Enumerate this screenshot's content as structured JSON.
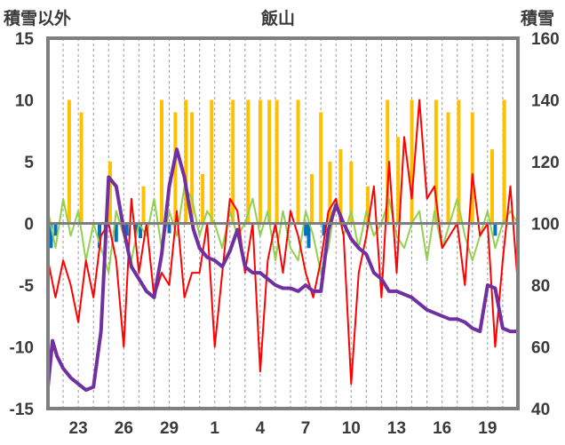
{
  "chart_data": {
    "type": "line",
    "title": "飯山",
    "ylabel_left": "積雪以外",
    "ylabel_right": "積雪",
    "ylim_left": [
      -15,
      15
    ],
    "ylim_right": [
      40,
      160
    ],
    "left_ticks": [
      15,
      10,
      5,
      0,
      -5,
      -10,
      -15
    ],
    "right_ticks": [
      160,
      140,
      120,
      100,
      80,
      60,
      40
    ],
    "x_range_days": [
      0,
      31
    ],
    "x_ticks": [
      {
        "day": 2,
        "label": "23"
      },
      {
        "day": 5,
        "label": "26"
      },
      {
        "day": 8,
        "label": "29"
      },
      {
        "day": 11,
        "label": "1"
      },
      {
        "day": 14,
        "label": "4"
      },
      {
        "day": 17,
        "label": "7"
      },
      {
        "day": 20,
        "label": "10"
      },
      {
        "day": 23,
        "label": "13"
      },
      {
        "day": 26,
        "label": "16"
      },
      {
        "day": 29,
        "label": "19"
      }
    ],
    "colors": {
      "snow_depth": "#7030a0",
      "temperature": "#ff0000",
      "other": "#92d050",
      "snowfall": "#ffc000",
      "negative_bars": "#0070c0",
      "frame": "#7f7f7f",
      "zero_line": "#7f7f7f",
      "gridline": "#9a9a9a"
    },
    "series": [
      {
        "axis": "right",
        "style": "line",
        "x": [
          0,
          0.3,
          0.6,
          1,
          1.5,
          2,
          2.5,
          3,
          3.5,
          4,
          4.5,
          5,
          5.5,
          6,
          6.5,
          7,
          7.5,
          8,
          8.5,
          9,
          9.3,
          9.6,
          10,
          10.5,
          11,
          11.5,
          12,
          12.5,
          13,
          13.5,
          14,
          14.5,
          15,
          15.5,
          16,
          16.5,
          17,
          17.5,
          18,
          18.5,
          19,
          19.5,
          20,
          20.5,
          21,
          21.5,
          22,
          22.5,
          23,
          23.5,
          24,
          24.5,
          25,
          25.5,
          26,
          26.5,
          27,
          27.5,
          28,
          28.5,
          29,
          29.5,
          30,
          30.5,
          31
        ],
        "values": [
          47,
          62,
          57,
          53,
          50,
          48,
          46,
          47,
          65,
          115,
          112,
          98,
          86,
          82,
          78,
          76,
          90,
          112,
          124,
          115,
          106,
          98,
          92,
          89,
          88,
          86,
          91,
          98,
          86,
          84,
          84,
          82,
          80,
          79,
          79,
          78,
          80,
          78,
          78,
          98,
          106,
          100,
          95,
          92,
          90,
          84,
          82,
          78,
          78,
          77,
          76,
          74,
          72,
          71,
          70,
          69,
          69,
          68,
          66,
          65,
          80,
          79,
          66,
          65,
          65
        ]
      },
      {
        "axis": "left",
        "style": "line",
        "x": [
          0,
          0.5,
          1,
          1.5,
          2,
          2.5,
          3,
          3.5,
          4,
          4.5,
          5,
          5.5,
          6,
          6.5,
          7,
          7.5,
          8,
          8.5,
          9,
          9.5,
          10,
          10.5,
          11,
          11.5,
          12,
          12.5,
          13,
          13.5,
          14,
          14.5,
          15,
          15.5,
          16,
          16.5,
          17,
          17.5,
          18,
          18.5,
          19,
          19.5,
          20,
          20.5,
          21,
          21.5,
          22,
          22.5,
          23,
          23.5,
          24,
          24.5,
          25,
          25.5,
          26,
          26.5,
          27,
          27.5,
          28,
          28.5,
          29,
          29.5,
          30,
          30.5,
          31
        ],
        "values": [
          -3,
          -6,
          -3,
          -5,
          -8,
          -3,
          -6,
          -1,
          0,
          -3,
          -10,
          2,
          -4,
          0,
          -6,
          -4,
          -5,
          1,
          -6,
          -4,
          -4,
          0,
          -10,
          -4,
          2,
          1,
          -4,
          0,
          -12,
          -3,
          0,
          -4,
          1,
          -1,
          -4,
          -6,
          -3,
          1,
          2,
          -1,
          -13,
          -4,
          -1,
          3,
          -6,
          5,
          -4,
          7,
          2,
          10,
          2,
          3,
          -2,
          -1,
          0,
          -5,
          4,
          -1,
          0,
          -10,
          -3,
          3,
          -5
        ]
      },
      {
        "axis": "left",
        "style": "line",
        "x": [
          0,
          0.5,
          1,
          1.5,
          2,
          2.5,
          3,
          3.5,
          4,
          4.5,
          5,
          5.5,
          6,
          6.5,
          7,
          7.5,
          8,
          8.5,
          9,
          9.5,
          10,
          10.5,
          11,
          11.5,
          12,
          12.5,
          13,
          13.5,
          14,
          14.5,
          15,
          15.5,
          16,
          16.5,
          17,
          17.5,
          18,
          18.5,
          19,
          19.5,
          20,
          20.5,
          21,
          21.5,
          22,
          22.5,
          23,
          23.5,
          24,
          24.5,
          25,
          25.5,
          26,
          26.5,
          27,
          27.5,
          28,
          28.5,
          29,
          29.5,
          30,
          30.5,
          31
        ],
        "values": [
          1,
          -2,
          2,
          -1,
          1,
          -3,
          0,
          -2,
          -4,
          1,
          -1,
          -3,
          0,
          -1,
          2,
          -2,
          1,
          -1,
          3,
          2,
          -1,
          1,
          0,
          -2,
          1,
          -1,
          0,
          2,
          -1,
          1,
          -3,
          1,
          -2,
          -3,
          1,
          -1,
          -4,
          -2,
          2,
          -1,
          1,
          -2,
          1,
          -1,
          0,
          2,
          -1,
          -2,
          0,
          1,
          -3,
          1,
          -2,
          0,
          2,
          -1,
          -3,
          -1,
          1,
          -2,
          0,
          1,
          0
        ]
      },
      {
        "axis": "left",
        "style": "bar",
        "x": [
          1.4,
          2.2,
          4.1,
          6.3,
          7.5,
          8.4,
          9.1,
          9.5,
          10.2,
          10.8,
          12.2,
          13.2,
          14.0,
          14.6,
          15.1,
          16.5,
          17.4,
          18.0,
          18.6,
          19.3,
          20.0,
          21.1,
          22.4,
          23.1,
          24.0,
          25.6,
          26.4,
          27.1,
          28.0,
          29.3,
          30.1
        ],
        "values": [
          10,
          9,
          5,
          3,
          10,
          9,
          10,
          9,
          4,
          10,
          10,
          10,
          10,
          10,
          10,
          10,
          4,
          9,
          5,
          6,
          5,
          3,
          10,
          7,
          10,
          10,
          9,
          10,
          9,
          6,
          10
        ]
      },
      {
        "axis": "left",
        "style": "bar",
        "x": [
          0.2,
          0.5,
          3.4,
          3.8,
          4.5,
          5.2,
          5.8,
          6.1,
          8.0,
          17.0,
          17.2,
          18.2,
          29.5
        ],
        "values": [
          -2,
          -1,
          -2,
          -1,
          -1.5,
          -1,
          -0.8,
          -1.2,
          -0.8,
          -1,
          -2,
          -1,
          -1
        ]
      }
    ]
  }
}
